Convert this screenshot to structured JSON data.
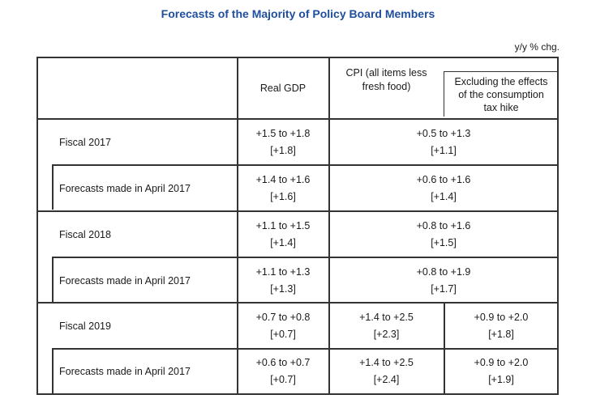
{
  "title": "Forecasts of the Majority of Policy Board Members",
  "unit_note": "y/y % chg.",
  "header": {
    "real_gdp": "Real GDP",
    "cpi_line1": "CPI (all items less",
    "cpi_line2": "fresh food)",
    "excl_line1": "Excluding the effects",
    "excl_line2": "of the consumption",
    "excl_line3": "tax hike"
  },
  "rows": [
    {
      "label": "Fiscal 2017",
      "gdp_range": "+1.5 to +1.8",
      "gdp_median": "[+1.8]",
      "cpi_range": "+0.5 to +1.3",
      "cpi_median": "[+1.1]"
    },
    {
      "label": "Forecasts made in April 2017",
      "gdp_range": "+1.4 to +1.6",
      "gdp_median": "[+1.6]",
      "cpi_range": "+0.6 to +1.6",
      "cpi_median": "[+1.4]"
    },
    {
      "label": "Fiscal 2018",
      "gdp_range": "+1.1 to +1.5",
      "gdp_median": "[+1.4]",
      "cpi_range": "+0.8 to +1.6",
      "cpi_median": "[+1.5]"
    },
    {
      "label": "Forecasts made in April 2017",
      "gdp_range": "+1.1 to +1.3",
      "gdp_median": "[+1.3]",
      "cpi_range": "+0.8 to +1.9",
      "cpi_median": "[+1.7]"
    },
    {
      "label": "Fiscal 2019",
      "gdp_range": "+0.7 to +0.8",
      "gdp_median": "[+0.7]",
      "cpi_range": "+1.4 to +2.5",
      "cpi_median": "[+2.3]",
      "excl_range": "+0.9 to +2.0",
      "excl_median": "[+1.8]"
    },
    {
      "label": "Forecasts made in April 2017",
      "gdp_range": "+0.6 to +0.7",
      "gdp_median": "[+0.7]",
      "cpi_range": "+1.4 to +2.5",
      "cpi_median": "[+2.4]",
      "excl_range": "+0.9 to +2.0",
      "excl_median": "[+1.9]"
    }
  ]
}
